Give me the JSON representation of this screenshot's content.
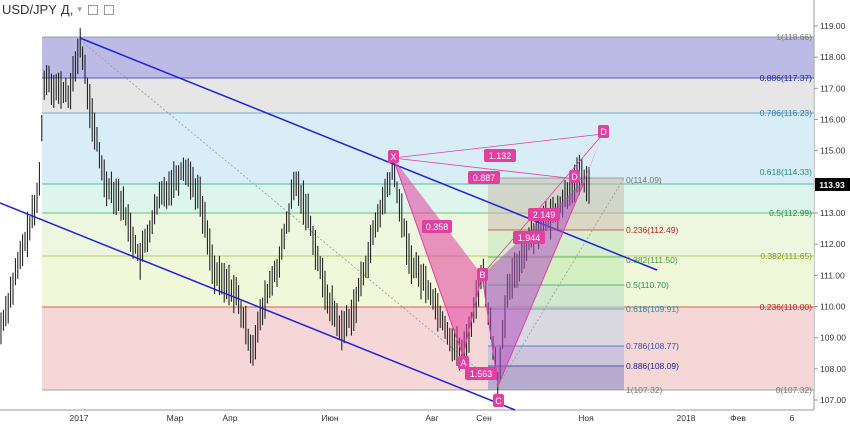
{
  "header": {
    "symbol": "USD/JPY",
    "separator": ",",
    "timeframe": "Д,"
  },
  "last_price_label": "113.93",
  "chart_data": {
    "type": "candlestick",
    "title": "USD/JPY, Д,",
    "y_ticks": [
      "119.00",
      "118.00",
      "117.00",
      "116.00",
      "115.00",
      "114.00",
      "113.00",
      "112.00",
      "111.00",
      "110.00",
      "109.00",
      "108.00",
      "107.00"
    ],
    "y_tick_values": [
      119,
      118,
      117,
      116,
      115,
      114,
      113,
      112,
      111,
      110,
      109,
      108,
      107
    ],
    "ylim": [
      106.6,
      119.6
    ],
    "x_labels": [
      "2017",
      "Мар",
      "Апр",
      "Июн",
      "Авг",
      "Сен",
      "Ноя",
      "2018",
      "Фев",
      "6"
    ],
    "series": [
      {
        "name": "USD/JPY",
        "close_range": [
          107.32,
          118.66
        ],
        "last": 113.93
      }
    ],
    "fib_left": [
      {
        "label": "1(118.66)",
        "value": 118.66
      },
      {
        "label": "0.886(117.37)",
        "value": 117.37
      },
      {
        "label": "0.786(116.23)",
        "value": 116.23
      },
      {
        "label": "0.618(114.33)",
        "value": 114.33
      },
      {
        "label": "0.5(112.99)",
        "value": 112.99
      },
      {
        "label": "0.382(111.65)",
        "value": 111.65
      },
      {
        "label": "0.236(110.00)",
        "value": 110.0
      },
      {
        "label": "0(107.32)",
        "value": 107.32
      }
    ],
    "fib_right": [
      {
        "label": "0(114.09)",
        "value": 114.09
      },
      {
        "label": "0.236(112.49)",
        "value": 112.49
      },
      {
        "label": "0.382(111.50)",
        "value": 111.5
      },
      {
        "label": "0.5(110.70)",
        "value": 110.7
      },
      {
        "label": "0.618(109.91)",
        "value": 109.91
      },
      {
        "label": "0.786(108.77)",
        "value": 108.77
      },
      {
        "label": "0.886(108.09)",
        "value": 108.09
      },
      {
        "label": "1(107.32)",
        "value": 107.32
      }
    ],
    "pattern_points": {
      "X": "X",
      "A": "A",
      "B": "B",
      "C": "C",
      "D1": "D",
      "D2": "D"
    },
    "pattern_ratios": {
      "r1": "0.358",
      "r2": "1.132",
      "r3": "0.887",
      "r4": "1.563",
      "r5": "1.944",
      "r6": "2.149"
    },
    "colors": {
      "channel": "#2020e0",
      "pattern": "#e040a0",
      "price_tag": "#000000"
    }
  }
}
